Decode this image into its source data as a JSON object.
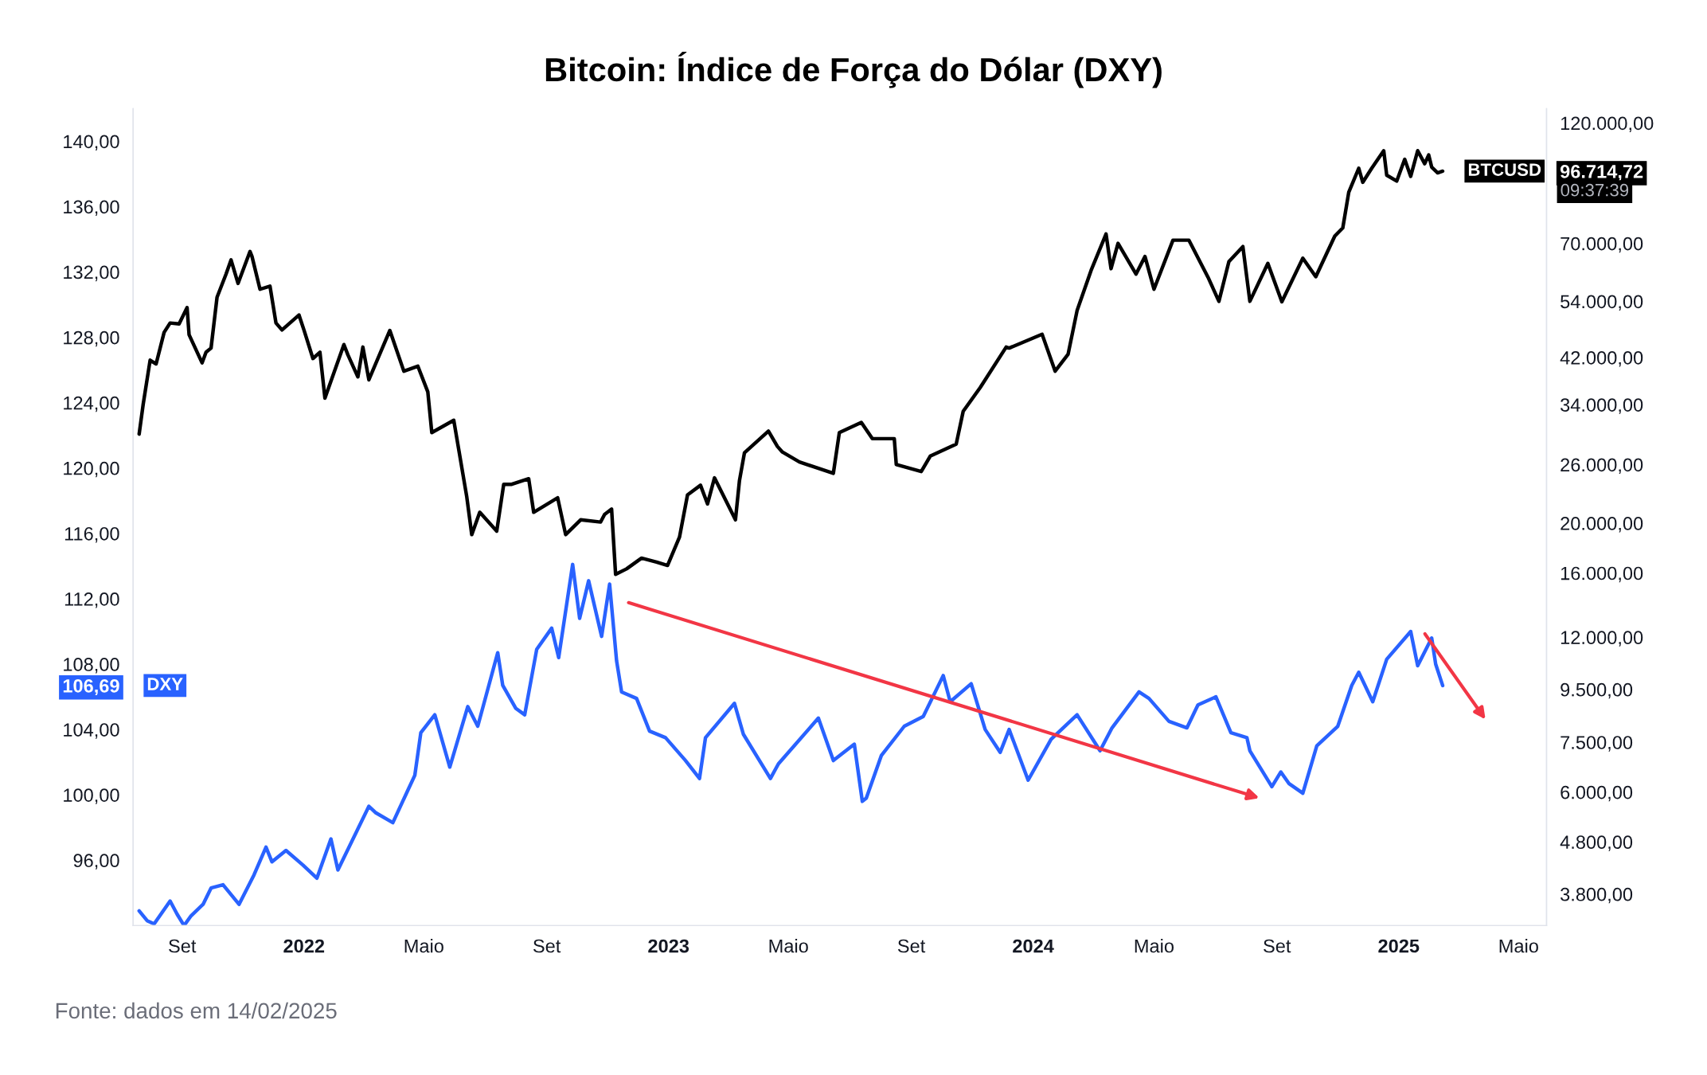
{
  "chart_data": {
    "type": "line",
    "title": "Bitcoin: Índice de Força do Dólar (DXY)",
    "annotations": [
      "09:37:39",
      "Fonte: dados em 14/02/2025"
    ],
    "grid": false,
    "legend": "left",
    "log": "y2",
    "line_style": "solid",
    "marker": "none",
    "xlim": [
      "2021-07-14",
      "2025-05-29"
    ],
    "xticks": [
      {
        "value": "2021-09-01",
        "label": "Set"
      },
      {
        "value": "2022-01-01",
        "label": "2022"
      },
      {
        "value": "2022-05-01",
        "label": "Maio"
      },
      {
        "value": "2022-09-01",
        "label": "Set"
      },
      {
        "value": "2023-01-01",
        "label": "2023"
      },
      {
        "value": "2023-05-01",
        "label": "Maio"
      },
      {
        "value": "2023-09-01",
        "label": "Set"
      },
      {
        "value": "2024-01-01",
        "label": "2024"
      },
      {
        "value": "2024-05-01",
        "label": "Maio"
      },
      {
        "value": "2024-09-01",
        "label": "Set"
      },
      {
        "value": "2025-01-01",
        "label": "2025"
      },
      {
        "value": "2025-05-01",
        "label": "Maio"
      }
    ],
    "ylim": [
      92,
      142
    ],
    "yticks": [
      {
        "value": 96,
        "label": "96,00"
      },
      {
        "value": 100,
        "label": "100,00"
      },
      {
        "value": 104,
        "label": "104,00"
      },
      {
        "value": 106.69,
        "label": "106,69"
      },
      {
        "value": 108,
        "label": "108,00"
      },
      {
        "value": 112,
        "label": "112,00"
      },
      {
        "value": 116,
        "label": "116,00"
      },
      {
        "value": 120,
        "label": "120,00"
      },
      {
        "value": 124,
        "label": "124,00"
      },
      {
        "value": 128,
        "label": "128,00"
      },
      {
        "value": 132,
        "label": "132,00"
      },
      {
        "value": 136,
        "label": "136,00"
      },
      {
        "value": 140,
        "label": "140,00"
      }
    ],
    "y2lim": [
      3300,
      128000
    ],
    "y2ticks": [
      {
        "value": 3800,
        "label": "3.800,00"
      },
      {
        "value": 4800,
        "label": "4.800,00"
      },
      {
        "value": 6000,
        "label": "6.000,00"
      },
      {
        "value": 7500,
        "label": "7.500,00"
      },
      {
        "value": 9500,
        "label": "9.500,00"
      },
      {
        "value": 12000,
        "label": "12.000,00"
      },
      {
        "value": 16000,
        "label": "16.000,00"
      },
      {
        "value": 20000,
        "label": "20.000,00"
      },
      {
        "value": 26000,
        "label": "26.000,00"
      },
      {
        "value": 34000,
        "label": "34.000,00"
      },
      {
        "value": 42000,
        "label": "42.000,00"
      },
      {
        "value": 54000,
        "label": "54.000,00"
      },
      {
        "value": 70000,
        "label": "70.000,00"
      },
      {
        "value": 96714.72,
        "label": "96.714,72"
      },
      {
        "value": 120000,
        "label": "120.000,00"
      }
    ],
    "series": [
      {
        "name": "BTCUSD",
        "color": "#000000",
        "axis": "y2",
        "x": [
          "2021-07-20",
          "2021-07-24",
          "2021-07-31",
          "2021-08-06",
          "2021-08-14",
          "2021-08-20",
          "2021-08-29",
          "2021-09-06",
          "2021-09-08",
          "2021-09-21",
          "2021-09-25",
          "2021-09-30",
          "2021-10-06",
          "2021-10-15",
          "2021-10-20",
          "2021-10-27",
          "2021-11-08",
          "2021-11-10",
          "2021-11-18",
          "2021-11-28",
          "2021-12-04",
          "2021-12-10",
          "2021-12-27",
          "2022-01-01",
          "2022-01-10",
          "2022-01-17",
          "2022-01-22",
          "2022-02-10",
          "2022-02-14",
          "2022-02-24",
          "2022-03-01",
          "2022-03-07",
          "2022-03-28",
          "2022-04-11",
          "2022-04-25",
          "2022-05-05",
          "2022-05-09",
          "2022-05-31",
          "2022-06-13",
          "2022-06-18",
          "2022-06-26",
          "2022-07-13",
          "2022-07-20",
          "2022-07-28",
          "2022-08-14",
          "2022-08-19",
          "2022-09-12",
          "2022-09-20",
          "2022-10-05",
          "2022-10-25",
          "2022-10-29",
          "2022-11-05",
          "2022-11-09",
          "2022-11-20",
          "2022-12-05",
          "2022-12-20",
          "2022-12-31",
          "2023-01-12",
          "2023-01-20",
          "2023-02-02",
          "2023-02-09",
          "2023-02-16",
          "2023-03-09",
          "2023-03-13",
          "2023-03-18",
          "2023-04-11",
          "2023-04-20",
          "2023-04-25",
          "2023-05-12",
          "2023-06-15",
          "2023-06-21",
          "2023-07-13",
          "2023-07-24",
          "2023-08-15",
          "2023-08-17",
          "2023-09-11",
          "2023-09-20",
          "2023-10-16",
          "2023-10-23",
          "2023-11-09",
          "2023-12-05",
          "2023-12-08",
          "2024-01-10",
          "2024-01-11",
          "2024-01-23",
          "2024-02-05",
          "2024-02-14",
          "2024-02-28",
          "2024-03-14",
          "2024-03-19",
          "2024-03-26",
          "2024-04-13",
          "2024-04-22",
          "2024-05-01",
          "2024-05-20",
          "2024-06-05",
          "2024-06-24",
          "2024-07-05",
          "2024-07-15",
          "2024-07-29",
          "2024-08-05",
          "2024-08-23",
          "2024-09-06",
          "2024-09-27",
          "2024-10-10",
          "2024-10-29",
          "2024-11-06",
          "2024-11-12",
          "2024-11-22",
          "2024-11-26",
          "2024-12-05",
          "2024-12-17",
          "2024-12-20",
          "2024-12-30",
          "2025-01-07",
          "2025-01-13",
          "2025-01-20",
          "2025-01-27",
          "2025-01-31",
          "2025-02-03",
          "2025-02-09",
          "2025-02-14"
        ],
        "values": [
          29800,
          34000,
          41500,
          40800,
          47000,
          49000,
          48800,
          52500,
          46500,
          41000,
          43000,
          43800,
          55000,
          61000,
          65000,
          58500,
          67500,
          66000,
          57000,
          57800,
          49000,
          47500,
          50800,
          47500,
          41800,
          43000,
          35000,
          44500,
          42500,
          38500,
          44000,
          38000,
          47400,
          39500,
          40400,
          36000,
          30000,
          31700,
          22500,
          19000,
          21000,
          19300,
          23800,
          23800,
          24400,
          21000,
          22400,
          19000,
          20300,
          20100,
          20800,
          21300,
          15900,
          16300,
          17100,
          16800,
          16550,
          18800,
          22700,
          23700,
          21800,
          24500,
          20300,
          24200,
          27400,
          30200,
          28200,
          27500,
          26300,
          25000,
          30000,
          31400,
          29200,
          29200,
          26000,
          25200,
          27000,
          28500,
          33000,
          36700,
          44000,
          43800,
          46600,
          46000,
          39500,
          42600,
          51800,
          62000,
          73000,
          62500,
          70000,
          61000,
          66000,
          57000,
          71000,
          71000,
          60200,
          54000,
          64500,
          69000,
          54000,
          64000,
          53900,
          65500,
          60300,
          72300,
          75000,
          88000,
          98000,
          92000,
          98000,
          106000,
          95000,
          92500,
          102000,
          94500,
          106000,
          100000,
          104000,
          98500,
          96000,
          96714.72
        ]
      },
      {
        "name": "DXY",
        "color": "#2962ff",
        "x": [
          "2021-07-20",
          "2021-07-28",
          "2021-08-04",
          "2021-08-20",
          "2021-08-27",
          "2021-09-03",
          "2021-09-10",
          "2021-09-22",
          "2021-09-30",
          "2021-10-12",
          "2021-10-28",
          "2021-11-12",
          "2021-11-24",
          "2021-11-30",
          "2021-12-14",
          "2021-12-31",
          "2022-01-14",
          "2022-01-28",
          "2022-02-04",
          "2022-03-07",
          "2022-03-14",
          "2022-03-31",
          "2022-04-22",
          "2022-04-28",
          "2022-05-12",
          "2022-05-27",
          "2022-06-14",
          "2022-06-24",
          "2022-07-14",
          "2022-07-19",
          "2022-08-01",
          "2022-08-10",
          "2022-08-22",
          "2022-09-06",
          "2022-09-13",
          "2022-09-27",
          "2022-10-04",
          "2022-10-13",
          "2022-10-26",
          "2022-11-03",
          "2022-11-10",
          "2022-11-15",
          "2022-11-30",
          "2022-12-13",
          "2022-12-29",
          "2023-01-18",
          "2023-02-01",
          "2023-02-07",
          "2023-03-08",
          "2023-03-17",
          "2023-04-13",
          "2023-04-21",
          "2023-05-31",
          "2023-06-15",
          "2023-07-06",
          "2023-07-14",
          "2023-07-18",
          "2023-08-02",
          "2023-08-25",
          "2023-09-13",
          "2023-10-03",
          "2023-10-10",
          "2023-10-31",
          "2023-11-14",
          "2023-11-29",
          "2023-12-08",
          "2023-12-27",
          "2024-01-19",
          "2024-02-14",
          "2024-03-08",
          "2024-03-20",
          "2024-04-16",
          "2024-04-26",
          "2024-05-16",
          "2024-06-03",
          "2024-06-14",
          "2024-07-02",
          "2024-07-17",
          "2024-08-02",
          "2024-08-05",
          "2024-08-27",
          "2024-09-05",
          "2024-09-13",
          "2024-09-27",
          "2024-10-11",
          "2024-11-01",
          "2024-11-15",
          "2024-11-22",
          "2024-12-06",
          "2024-12-20",
          "2025-01-13",
          "2025-01-20",
          "2025-02-03",
          "2025-02-07",
          "2025-02-14"
        ],
        "values": [
          92.9,
          92.3,
          92.1,
          93.5,
          92.7,
          92.0,
          92.6,
          93.3,
          94.3,
          94.5,
          93.3,
          95.1,
          96.8,
          95.9,
          96.6,
          95.7,
          94.9,
          97.3,
          95.4,
          99.3,
          98.9,
          98.3,
          101.2,
          103.8,
          104.9,
          101.7,
          105.4,
          104.2,
          108.7,
          106.7,
          105.3,
          104.9,
          108.9,
          110.2,
          108.4,
          114.1,
          110.8,
          113.1,
          109.7,
          112.9,
          108.2,
          106.3,
          105.9,
          103.9,
          103.5,
          102.1,
          101.0,
          103.5,
          105.6,
          103.7,
          101.0,
          101.9,
          104.7,
          102.1,
          103.1,
          99.6,
          99.8,
          102.4,
          104.2,
          104.8,
          107.3,
          105.7,
          106.8,
          104.0,
          102.6,
          104.0,
          100.9,
          103.4,
          104.9,
          102.7,
          104.1,
          106.3,
          105.9,
          104.5,
          104.1,
          105.5,
          106.0,
          103.8,
          103.5,
          102.7,
          100.5,
          101.4,
          100.7,
          100.1,
          103.0,
          104.2,
          106.7,
          107.5,
          105.7,
          108.3,
          110.0,
          107.9,
          109.6,
          108.0,
          106.69
        ]
      }
    ]
  }
}
